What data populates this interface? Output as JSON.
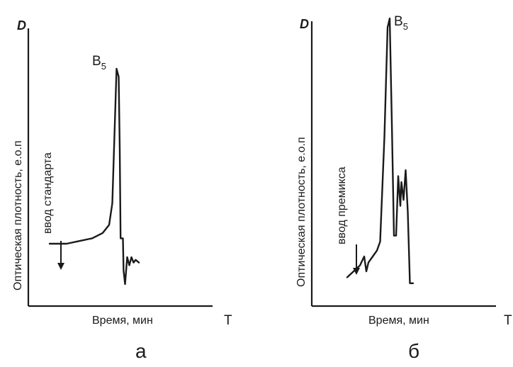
{
  "panels": [
    {
      "panel_label": "а",
      "y_axis_letter": "D",
      "x_axis_letter": "T",
      "ylabel": "Оптическая плотность, е.о.п",
      "xlabel": "Время, мин",
      "annotation": "ввод стандарта",
      "peak_label_base": "B",
      "peak_label_sub": "5"
    },
    {
      "panel_label": "б",
      "y_axis_letter": "D",
      "x_axis_letter": "T",
      "ylabel": "Оптическая плотность, е.о.п",
      "xlabel": "Время, мин",
      "annotation": "ввод премикса",
      "peak_label_base": "B",
      "peak_label_sub": "5"
    }
  ],
  "chart_data": [
    {
      "type": "line",
      "title": "",
      "xlabel": "Время, мин",
      "ylabel": "Оптическая плотность, е.о.п",
      "series": [
        {
          "name": "",
          "points": [
            [
              0,
              0.2
            ],
            [
              8,
              0.2
            ],
            [
              14,
              0.21
            ],
            [
              20,
              0.22
            ],
            [
              25,
              0.24
            ],
            [
              28,
              0.27
            ],
            [
              29.5,
              0.35
            ],
            [
              30.5,
              0.6
            ],
            [
              31.5,
              0.85
            ],
            [
              32.5,
              0.82
            ],
            [
              33,
              0.55
            ],
            [
              33.4,
              0.22
            ],
            [
              34.5,
              0.22
            ],
            [
              34.8,
              0.1
            ],
            [
              35.5,
              0.05
            ],
            [
              36.5,
              0.15
            ],
            [
              37.5,
              0.12
            ],
            [
              38.5,
              0.15
            ],
            [
              39.5,
              0.13
            ],
            [
              40.5,
              0.14
            ],
            [
              42,
              0.13
            ]
          ]
        }
      ],
      "annotations": [
        {
          "text": "ввод стандарта",
          "x": 5
        },
        {
          "text": "B5",
          "x": 31.8
        }
      ],
      "grid": false,
      "legend": false
    },
    {
      "type": "line",
      "title": "",
      "xlabel": "Время, мин",
      "ylabel": "Оптическая плотность, е.о.п",
      "series": [
        {
          "name": "",
          "points": [
            [
              0,
              0.08
            ],
            [
              3,
              0.1
            ],
            [
              6,
              0.12
            ],
            [
              8,
              0.15
            ],
            [
              9,
              0.1
            ],
            [
              10,
              0.13
            ],
            [
              12,
              0.15
            ],
            [
              14,
              0.17
            ],
            [
              15.5,
              0.2
            ],
            [
              17.5,
              0.55
            ],
            [
              19,
              0.92
            ],
            [
              20,
              0.95
            ],
            [
              21,
              0.6
            ],
            [
              22,
              0.22
            ],
            [
              23,
              0.22
            ],
            [
              24,
              0.42
            ],
            [
              25,
              0.32
            ],
            [
              25.5,
              0.4
            ],
            [
              26.5,
              0.34
            ],
            [
              27.5,
              0.44
            ],
            [
              28.5,
              0.3
            ],
            [
              29.5,
              0.06
            ],
            [
              31,
              0.06
            ]
          ]
        }
      ],
      "annotations": [
        {
          "text": "ввод премикса",
          "x": 8
        },
        {
          "text": "B5",
          "x": 19.5
        }
      ],
      "grid": false,
      "legend": false
    }
  ]
}
